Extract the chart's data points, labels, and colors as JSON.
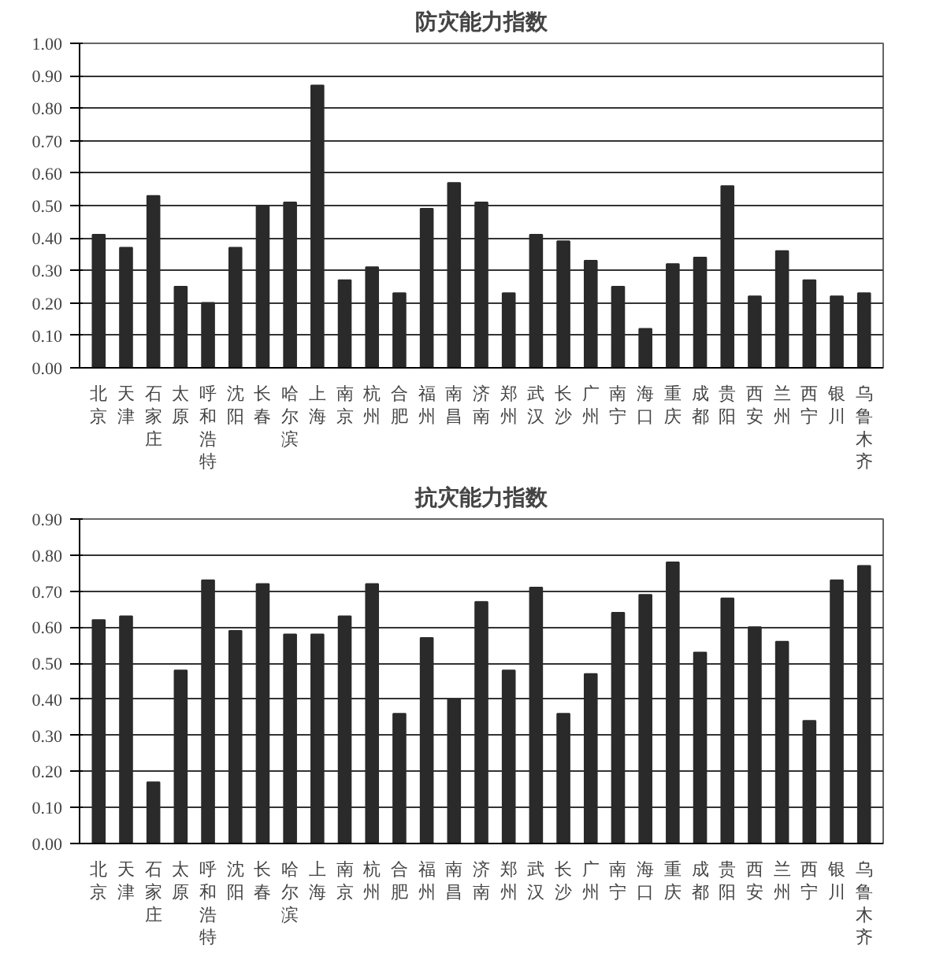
{
  "chart_data": [
    {
      "type": "bar",
      "title": "防灾能力指数",
      "categories": [
        "北京",
        "天津",
        "石家庄",
        "太原",
        "呼和浩特",
        "沈阳",
        "长春",
        "哈尔滨",
        "上海",
        "南京",
        "杭州",
        "合肥",
        "福州",
        "南昌",
        "济南",
        "郑州",
        "武汉",
        "长沙",
        "广州",
        "南宁",
        "海口",
        "重庆",
        "成都",
        "贵阳",
        "西安",
        "兰州",
        "西宁",
        "银川",
        "乌鲁木齐"
      ],
      "values": [
        0.41,
        0.37,
        0.53,
        0.25,
        0.2,
        0.37,
        0.5,
        0.51,
        0.87,
        0.27,
        0.31,
        0.23,
        0.49,
        0.57,
        0.51,
        0.23,
        0.41,
        0.39,
        0.33,
        0.25,
        0.12,
        0.32,
        0.34,
        0.56,
        0.22,
        0.36,
        0.27,
        0.22,
        0.23
      ],
      "color": "#2a2a2a",
      "ylim": [
        0,
        1.0
      ],
      "yticks": [
        {
          "value": 0,
          "label": "0.00"
        },
        {
          "value": 0.1,
          "label": "0.10"
        },
        {
          "value": 0.2,
          "label": "0.20"
        },
        {
          "value": 0.3,
          "label": "0.30"
        },
        {
          "value": 0.4,
          "label": "0.40"
        },
        {
          "value": 0.5,
          "label": "0.50"
        },
        {
          "value": 0.6,
          "label": "0.60"
        },
        {
          "value": 0.7,
          "label": "0.70"
        },
        {
          "value": 0.8,
          "label": "0.80"
        },
        {
          "value": 0.9,
          "label": "0.90"
        },
        {
          "value": 1.0,
          "label": "1.00"
        }
      ],
      "grid": "y"
    },
    {
      "type": "bar",
      "title": "抗灾能力指数",
      "categories": [
        "北京",
        "天津",
        "石家庄",
        "太原",
        "呼和浩特",
        "沈阳",
        "长春",
        "哈尔滨",
        "上海",
        "南京",
        "杭州",
        "合肥",
        "福州",
        "南昌",
        "济南",
        "郑州",
        "武汉",
        "长沙",
        "广州",
        "南宁",
        "海口",
        "重庆",
        "成都",
        "贵阳",
        "西安",
        "兰州",
        "西宁",
        "银川",
        "乌鲁木齐"
      ],
      "values": [
        0.62,
        0.63,
        0.17,
        0.48,
        0.73,
        0.59,
        0.72,
        0.58,
        0.58,
        0.63,
        0.72,
        0.36,
        0.57,
        0.4,
        0.67,
        0.48,
        0.71,
        0.36,
        0.47,
        0.64,
        0.69,
        0.78,
        0.53,
        0.68,
        0.6,
        0.56,
        0.34,
        0.73,
        0.77
      ],
      "color": "#2a2a2a",
      "ylim": [
        0,
        0.9
      ],
      "yticks": [
        {
          "value": 0,
          "label": "0.00"
        },
        {
          "value": 0.1,
          "label": "0.10"
        },
        {
          "value": 0.2,
          "label": "0.20"
        },
        {
          "value": 0.3,
          "label": "0.30"
        },
        {
          "value": 0.4,
          "label": "0.40"
        },
        {
          "value": 0.5,
          "label": "0.50"
        },
        {
          "value": 0.6,
          "label": "0.60"
        },
        {
          "value": 0.7,
          "label": "0.70"
        },
        {
          "value": 0.8,
          "label": "0.80"
        },
        {
          "value": 0.9,
          "label": "0.90"
        }
      ],
      "grid": "y"
    }
  ]
}
